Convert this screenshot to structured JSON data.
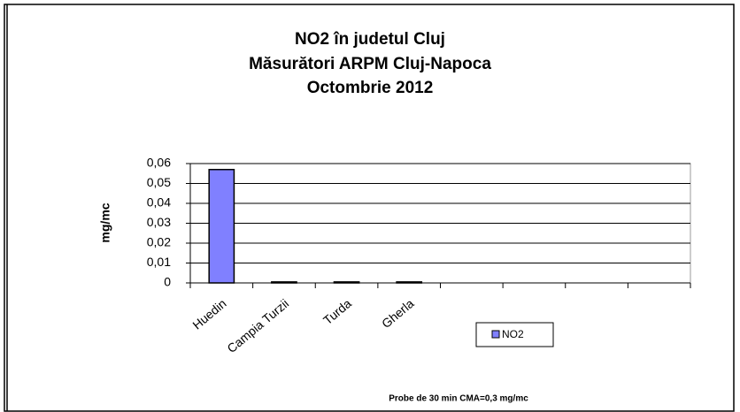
{
  "chart_data": {
    "type": "bar",
    "title": [
      "NO2 în judetul Cluj",
      "Măsurători ARPM Cluj-Napoca",
      "Octombrie 2012"
    ],
    "ylabel": "mg/mc",
    "note": "Probe de 30 min    CMA=0,3 mg/mc",
    "categories": [
      "Huedin",
      "Campia Turzii",
      "Turda",
      "Gherla",
      null,
      null,
      null,
      null
    ],
    "series": [
      {
        "name": "NO2",
        "color": "#8080ff",
        "values": [
          0.057,
          0.0005,
          0.0005,
          0.0005,
          null,
          null,
          null,
          null
        ]
      }
    ],
    "ylim": [
      0,
      0.06
    ],
    "yticks": [
      0,
      {
        "value": 0.01,
        "label": "0,01"
      },
      {
        "value": 0.02,
        "label": "0,02"
      },
      {
        "value": 0.03,
        "label": "0,03"
      },
      {
        "value": 0.04,
        "label": "0,04"
      },
      {
        "value": 0.05,
        "label": "0,05"
      },
      {
        "value": 0.06,
        "label": "0,06"
      }
    ],
    "grid": true
  }
}
